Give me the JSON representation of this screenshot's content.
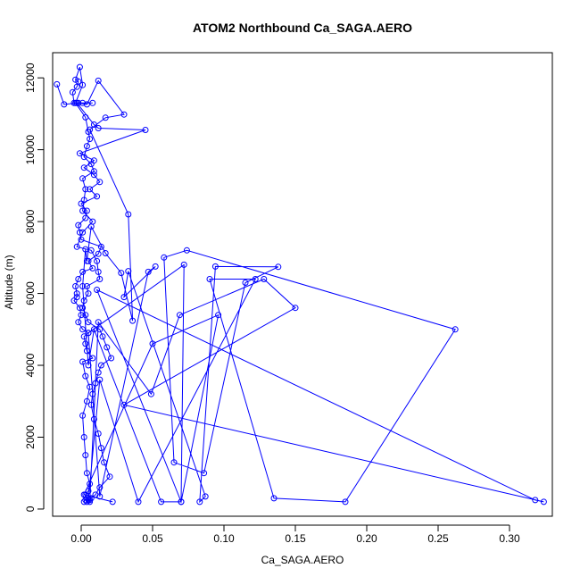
{
  "chart_data": {
    "type": "line",
    "title": "ATOM2 Northbound Ca_SAGA.AERO",
    "xlabel": "Ca_SAGA.AERO",
    "ylabel": "Altitude (m)",
    "xlim": [
      -0.02,
      0.33
    ],
    "ylim": [
      -200,
      12700
    ],
    "x_ticks": [
      {
        "value": 0.0,
        "label": "0.00"
      },
      {
        "value": 0.05,
        "label": "0.05"
      },
      {
        "value": 0.1,
        "label": "0.10"
      },
      {
        "value": 0.15,
        "label": "0.15"
      },
      {
        "value": 0.2,
        "label": "0.20"
      },
      {
        "value": 0.25,
        "label": "0.25"
      },
      {
        "value": 0.3,
        "label": "0.30"
      }
    ],
    "y_ticks": [
      {
        "value": 0,
        "label": "0"
      },
      {
        "value": 2000,
        "label": "2000"
      },
      {
        "value": 4000,
        "label": "4000"
      },
      {
        "value": 6000,
        "label": "6000"
      },
      {
        "value": 8000,
        "label": "8000"
      },
      {
        "value": 10000,
        "label": "10000"
      },
      {
        "value": 12000,
        "label": "12000"
      }
    ],
    "color": "#0000ff",
    "marker": "open-circle",
    "series": [
      {
        "x": [
          0.002,
          0.003,
          0.005,
          0.006,
          0.004,
          0.003,
          0.002,
          0.001,
          0.004,
          0.006,
          0.003,
          0.001,
          0.008,
          0.004,
          0.003,
          0.002,
          0.005,
          0.001,
          -0.002,
          0.0,
          -0.001,
          -0.005,
          -0.003,
          -0.003,
          -0.004,
          -0.002,
          0.001,
          0.008,
          0.005,
          0.012,
          0.014,
          0.0,
          -0.001,
          -0.002,
          0.003,
          0.004,
          0.0,
          0.011,
          0.006,
          0.013,
          0.009,
          0.002,
          0.009,
          -0.001,
          0.045,
          0.012,
          0.009,
          -0.003,
          0.008,
          0.001,
          -0.005,
          -0.006,
          -0.003,
          -0.002,
          -0.004,
          -0.001,
          0.001,
          -0.004,
          0.003,
          0.005,
          0.006,
          0.004,
          0.002,
          0.007,
          0.009,
          0.001,
          0.003,
          0.002,
          0.001,
          0.008,
          0.001,
          -0.003,
          0.007,
          0.011,
          0.012,
          0.013,
          0.004,
          0.005,
          0.002,
          0.001,
          0.003,
          0.005,
          0.013,
          0.015,
          0.018,
          0.021,
          0.014,
          0.012,
          0.01,
          0.008,
          0.007,
          0.009,
          0.012,
          0.014,
          0.016,
          0.02,
          0.013,
          0.01,
          0.007,
          0.006,
          0.004
        ],
        "y": [
          200,
          400,
          500,
          700,
          1000,
          1500,
          2000,
          2600,
          3000,
          3400,
          3700,
          4100,
          4200,
          4400,
          4600,
          4800,
          4900,
          5000,
          5200,
          5400,
          5600,
          5800,
          5900,
          6000,
          6200,
          6400,
          6600,
          6700,
          6900,
          7100,
          7300,
          7500,
          7700,
          7900,
          8100,
          8300,
          8500,
          8700,
          8900,
          9100,
          9300,
          9500,
          9700,
          9900,
          10550,
          10600,
          10700,
          11300,
          11300,
          11300,
          11300,
          11600,
          11750,
          11900,
          11950,
          12300,
          11800,
          11300,
          10900,
          10500,
          10300,
          10100,
          9800,
          9600,
          9400,
          9200,
          8900,
          8600,
          8300,
          8000,
          7700,
          7300,
          7200,
          6900,
          6600,
          6400,
          6200,
          6000,
          5800,
          5600,
          5400,
          5200,
          5000,
          4800,
          4500,
          4200,
          4000,
          3800,
          3500,
          3200,
          2900,
          2500,
          2100,
          1700,
          1300,
          900,
          600,
          400,
          300,
          250,
          200
        ]
      },
      {
        "x": [
          -0.017,
          -0.012,
          -0.002,
          0.004,
          0.012,
          0.03,
          0.017,
          0.006,
          0.033,
          0.036,
          0.028,
          0.017,
          0.007,
          0.004,
          0.003,
          0.001,
          0.005,
          0.009,
          0.056,
          0.07,
          0.072,
          0.005,
          0.013,
          0.047,
          0.052,
          0.03,
          0.033,
          0.087,
          0.083,
          0.094,
          0.138,
          0.115,
          0.086,
          0.065,
          0.058,
          0.074,
          0.262,
          0.185,
          0.135,
          0.09,
          0.122,
          0.04,
          0.013,
          0.005,
          0.003,
          0.006,
          0.012,
          0.049,
          0.069,
          0.128,
          0.15,
          0.03,
          0.324,
          0.318,
          0.011,
          0.07,
          0.096,
          0.05,
          0.002,
          0.022
        ],
        "y": [
          11820,
          11260,
          11300,
          11260,
          11920,
          10980,
          10890,
          10560,
          8200,
          5240,
          6570,
          7120,
          7860,
          6900,
          7230,
          6200,
          4000,
          5000,
          200,
          200,
          6800,
          4900,
          350,
          6600,
          6750,
          5900,
          6620,
          350,
          200,
          6750,
          6740,
          6300,
          1000,
          1300,
          7000,
          7200,
          5000,
          200,
          300,
          6400,
          6400,
          200,
          3600,
          250,
          250,
          200,
          5200,
          3200,
          5400,
          6400,
          5600,
          2900,
          200,
          250,
          6100,
          200,
          5400,
          4600,
          400,
          200
        ]
      }
    ]
  }
}
